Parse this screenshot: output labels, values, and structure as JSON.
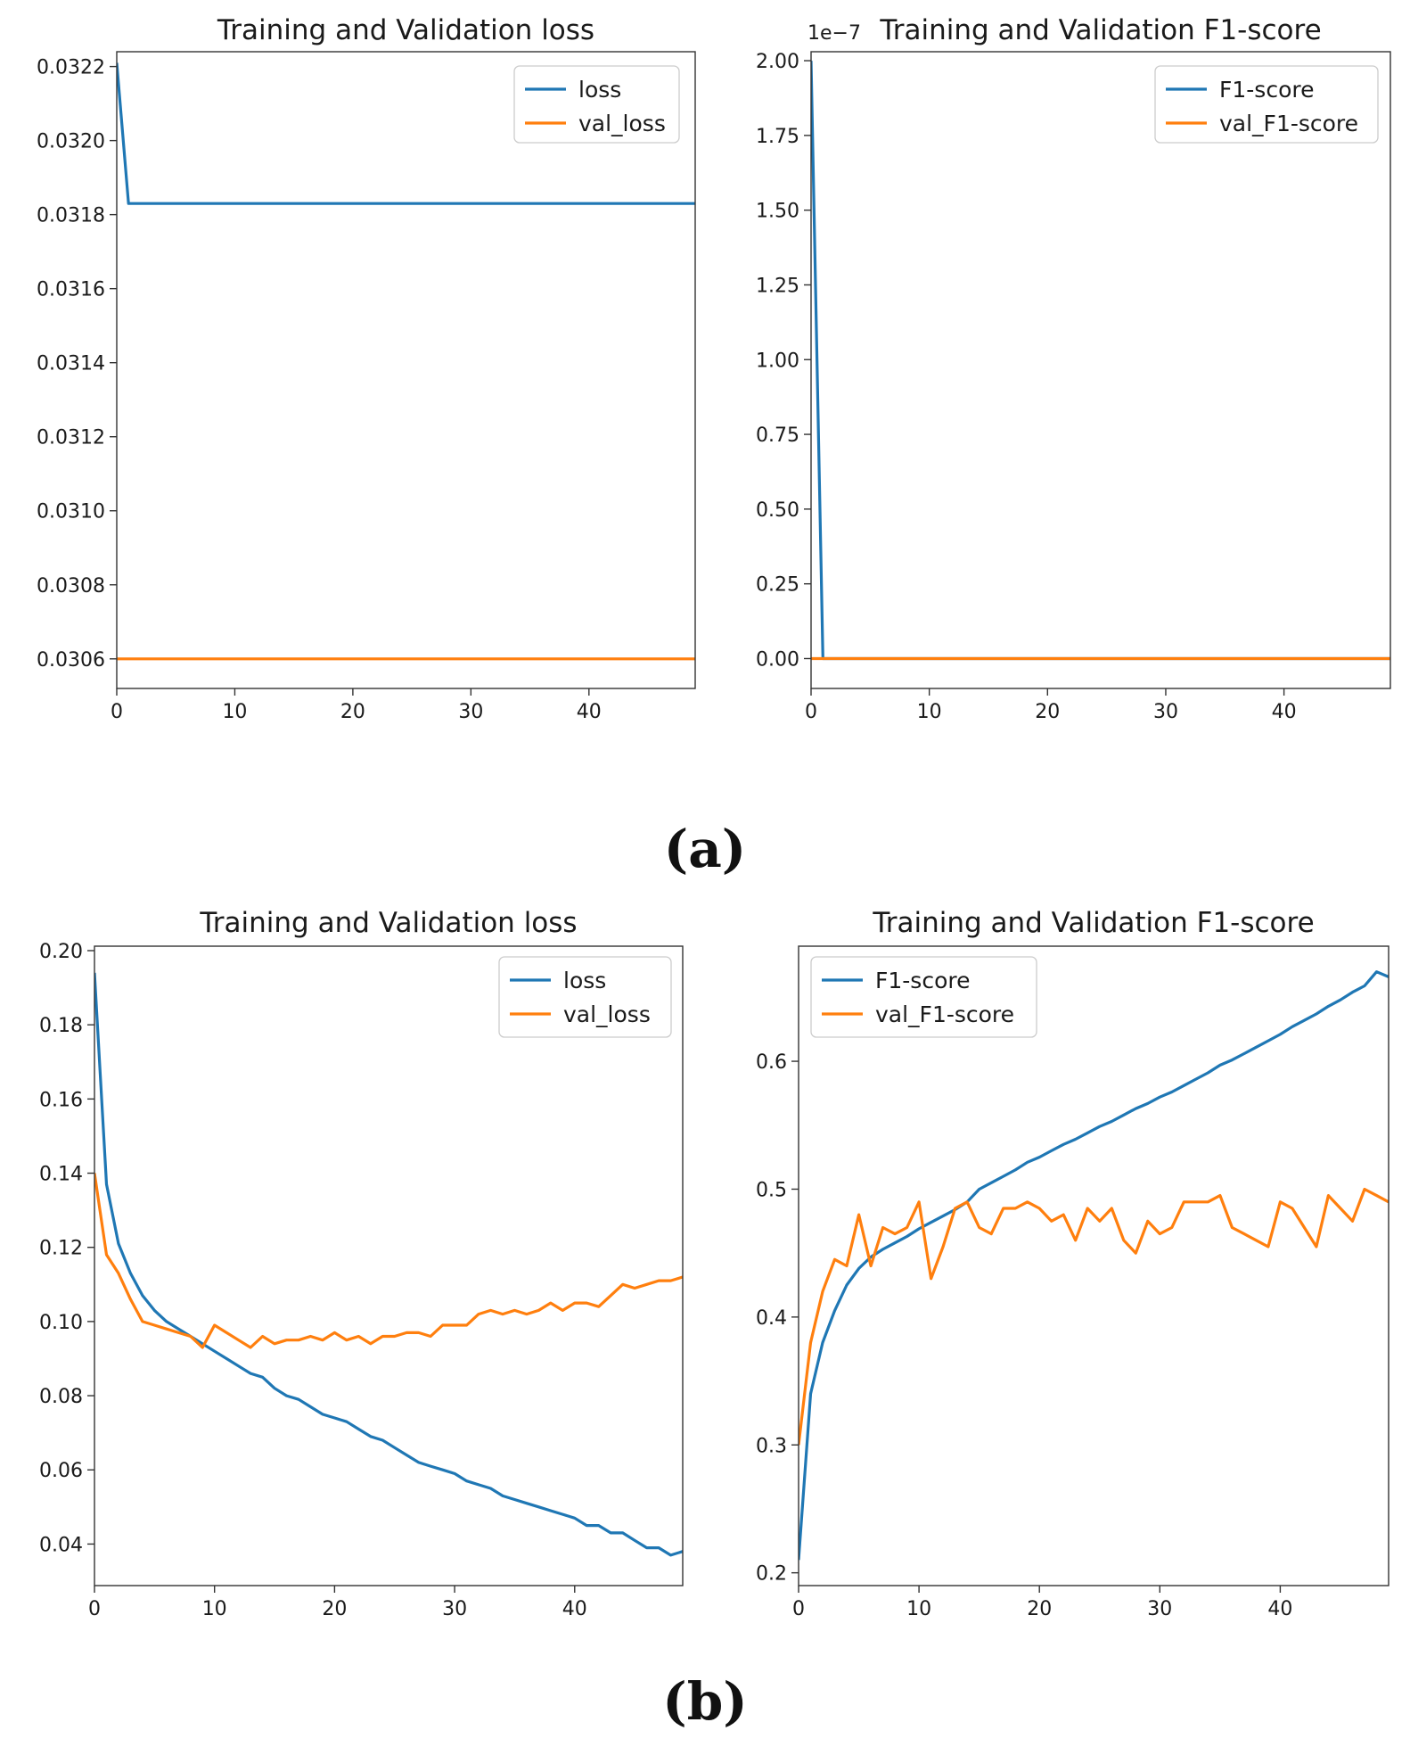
{
  "panels": {
    "a": "(a)",
    "b": "(b)"
  },
  "colors": {
    "train": "#1f77b4",
    "val": "#ff7f0e",
    "axes": "#333333",
    "legend_border": "#cccccc"
  },
  "chart_data": [
    {
      "id": "a-loss",
      "type": "line",
      "title": "Training and Validation loss",
      "xlabel": "",
      "ylabel": "",
      "xlim": [
        0,
        49
      ],
      "ylim": [
        0.03052,
        0.03224
      ],
      "xticks": [
        0,
        10,
        20,
        30,
        40
      ],
      "yticks": [
        0.0306,
        0.0308,
        0.031,
        0.0312,
        0.0314,
        0.0316,
        0.0318,
        0.032,
        0.0322
      ],
      "ytick_labels": [
        "0.0306",
        "0.0308",
        "0.0310",
        "0.0312",
        "0.0314",
        "0.0316",
        "0.0318",
        "0.0320",
        "0.0322"
      ],
      "legend": "top-right",
      "series": [
        {
          "name": "loss",
          "color_key": "train",
          "constant_after": 1,
          "values_head": [
            0.03221,
            0.03183
          ],
          "constant_value": 0.03183
        },
        {
          "name": "val_loss",
          "color_key": "val",
          "constant_value": 0.0306
        }
      ]
    },
    {
      "id": "a-f1",
      "type": "line",
      "title": "Training and Validation F1-score",
      "offset_text": "1e−7",
      "xlabel": "",
      "ylabel": "",
      "xlim": [
        0,
        49
      ],
      "ylim": [
        -0.1,
        2.03
      ],
      "xticks": [
        0,
        10,
        20,
        30,
        40
      ],
      "yticks": [
        0,
        0.25,
        0.5,
        0.75,
        1.0,
        1.25,
        1.5,
        1.75,
        2.0
      ],
      "ytick_labels": [
        "0.00",
        "0.25",
        "0.50",
        "0.75",
        "1.00",
        "1.25",
        "1.50",
        "1.75",
        "2.00"
      ],
      "legend": "top-right",
      "series": [
        {
          "name": "F1-score",
          "color_key": "train",
          "values_head": [
            2.0,
            0.0
          ],
          "constant_value": 0.0
        },
        {
          "name": "val_F1-score",
          "color_key": "val",
          "constant_value": 0.0
        }
      ]
    },
    {
      "id": "b-loss",
      "type": "line",
      "title": "Training and Validation loss",
      "xlabel": "",
      "ylabel": "",
      "xlim": [
        0,
        49
      ],
      "ylim": [
        0.0288,
        0.2012
      ],
      "xticks": [
        0,
        10,
        20,
        30,
        40
      ],
      "yticks": [
        0.04,
        0.06,
        0.08,
        0.1,
        0.12,
        0.14,
        0.16,
        0.18,
        0.2
      ],
      "ytick_labels": [
        "0.04",
        "0.06",
        "0.08",
        "0.10",
        "0.12",
        "0.14",
        "0.16",
        "0.18",
        "0.20"
      ],
      "legend": "top-right",
      "series": [
        {
          "name": "loss",
          "color_key": "train",
          "values": [
            0.194,
            0.137,
            0.121,
            0.113,
            0.107,
            0.103,
            0.1,
            0.098,
            0.096,
            0.094,
            0.092,
            0.09,
            0.088,
            0.086,
            0.085,
            0.082,
            0.08,
            0.079,
            0.077,
            0.075,
            0.074,
            0.073,
            0.071,
            0.069,
            0.068,
            0.066,
            0.064,
            0.062,
            0.061,
            0.06,
            0.059,
            0.057,
            0.056,
            0.055,
            0.053,
            0.052,
            0.051,
            0.05,
            0.049,
            0.048,
            0.047,
            0.045,
            0.045,
            0.043,
            0.043,
            0.041,
            0.039,
            0.039,
            0.037,
            0.038
          ]
        },
        {
          "name": "val_loss",
          "color_key": "val",
          "values": [
            0.14,
            0.118,
            0.113,
            0.106,
            0.1,
            0.099,
            0.098,
            0.097,
            0.096,
            0.093,
            0.099,
            0.097,
            0.095,
            0.093,
            0.096,
            0.094,
            0.095,
            0.095,
            0.096,
            0.095,
            0.097,
            0.095,
            0.096,
            0.094,
            0.096,
            0.096,
            0.097,
            0.097,
            0.096,
            0.099,
            0.099,
            0.099,
            0.102,
            0.103,
            0.102,
            0.103,
            0.102,
            0.103,
            0.105,
            0.103,
            0.105,
            0.105,
            0.104,
            0.107,
            0.11,
            0.109,
            0.11,
            0.111,
            0.111,
            0.112
          ]
        }
      ]
    },
    {
      "id": "b-f1",
      "type": "line",
      "title": "Training and Validation F1-score",
      "xlabel": "",
      "ylabel": "",
      "xlim": [
        0,
        49
      ],
      "ylim": [
        0.19,
        0.69
      ],
      "xticks": [
        0,
        10,
        20,
        30,
        40
      ],
      "yticks": [
        0.2,
        0.3,
        0.4,
        0.5,
        0.6
      ],
      "ytick_labels": [
        "0.2",
        "0.3",
        "0.4",
        "0.5",
        "0.6"
      ],
      "legend": "top-left",
      "series": [
        {
          "name": "F1-score",
          "color_key": "train",
          "values": [
            0.21,
            0.34,
            0.38,
            0.405,
            0.425,
            0.438,
            0.447,
            0.453,
            0.458,
            0.463,
            0.469,
            0.474,
            0.479,
            0.484,
            0.49,
            0.5,
            0.505,
            0.51,
            0.515,
            0.521,
            0.525,
            0.53,
            0.535,
            0.539,
            0.544,
            0.549,
            0.553,
            0.558,
            0.563,
            0.567,
            0.572,
            0.576,
            0.581,
            0.586,
            0.591,
            0.597,
            0.601,
            0.606,
            0.611,
            0.616,
            0.621,
            0.627,
            0.632,
            0.637,
            0.643,
            0.648,
            0.654,
            0.659,
            0.67,
            0.666
          ]
        },
        {
          "name": "val_F1-score",
          "color_key": "val",
          "values": [
            0.3,
            0.38,
            0.42,
            0.445,
            0.44,
            0.48,
            0.44,
            0.47,
            0.465,
            0.47,
            0.49,
            0.43,
            0.455,
            0.485,
            0.49,
            0.47,
            0.465,
            0.485,
            0.485,
            0.49,
            0.485,
            0.475,
            0.48,
            0.46,
            0.485,
            0.475,
            0.485,
            0.46,
            0.45,
            0.475,
            0.465,
            0.47,
            0.49,
            0.49,
            0.49,
            0.495,
            0.47,
            0.465,
            0.46,
            0.455,
            0.49,
            0.485,
            0.47,
            0.455,
            0.495,
            0.485,
            0.475,
            0.5,
            0.495,
            0.49
          ]
        }
      ]
    }
  ]
}
